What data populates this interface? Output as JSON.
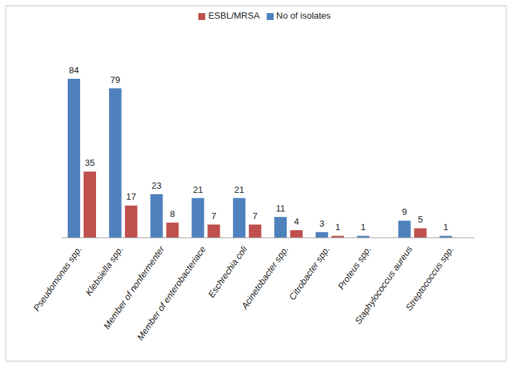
{
  "chart_data": {
    "type": "bar",
    "categories": [
      "Pseudomonas spp.",
      "Klebsiella spp.",
      "Member of nonfermenter",
      "Member of enterobacteriace",
      "Eschrechia coli",
      "Acinetobacter spp.",
      "Citrobacter spp.",
      "Proteus spp.",
      "Staphylococcus aureus",
      "Streptococcus spp."
    ],
    "series": [
      {
        "name": "No of isolates",
        "color": "#4f81bd",
        "values": [
          84,
          79,
          23,
          21,
          21,
          11,
          3,
          1,
          9,
          1
        ]
      },
      {
        "name": "ESBL/MRSA",
        "color": "#c0504d",
        "values": [
          35,
          17,
          8,
          7,
          7,
          4,
          1,
          null,
          5,
          null
        ]
      }
    ],
    "ylim": [
      0,
      84
    ],
    "grid": false,
    "legend": "top",
    "data_labels": true,
    "tick_labels": "x"
  }
}
